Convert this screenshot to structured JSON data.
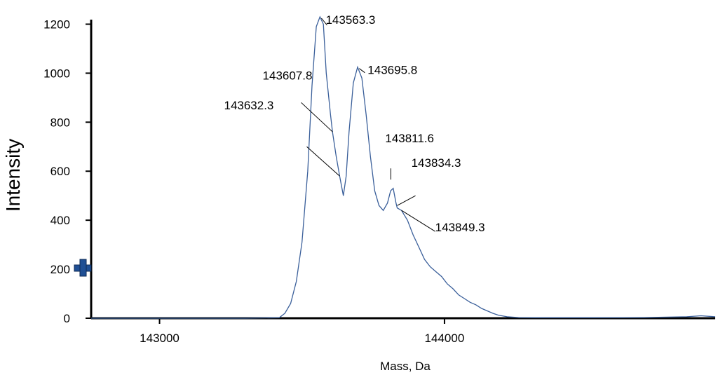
{
  "chart_data": {
    "type": "line",
    "title": "",
    "xlabel": "Mass, Da",
    "ylabel": "Intensity",
    "xlim": [
      142760,
      144950
    ],
    "ylim": [
      0,
      1230
    ],
    "x_ticks": [
      {
        "value": 143000,
        "label": "143000"
      },
      {
        "value": 144000,
        "label": "144000"
      }
    ],
    "y_ticks": [
      {
        "value": 0,
        "label": "0"
      },
      {
        "value": 200,
        "label": "200"
      },
      {
        "value": 400,
        "label": "400"
      },
      {
        "value": 600,
        "label": "600"
      },
      {
        "value": 800,
        "label": "800"
      },
      {
        "value": 1000,
        "label": "1000"
      },
      {
        "value": 1200,
        "label": "1200"
      }
    ],
    "grid": false,
    "legend": "none",
    "line_color": "#3a5f9a",
    "series": [
      {
        "points": [
          [
            142760,
            0
          ],
          [
            143300,
            0
          ],
          [
            143420,
            2
          ],
          [
            143440,
            20
          ],
          [
            143460,
            60
          ],
          [
            143480,
            150
          ],
          [
            143500,
            310
          ],
          [
            143520,
            600
          ],
          [
            143535,
            950
          ],
          [
            143550,
            1190
          ],
          [
            143563,
            1230
          ],
          [
            143575,
            1200
          ],
          [
            143585,
            1000
          ],
          [
            143600,
            830
          ],
          [
            143607,
            760
          ],
          [
            143620,
            660
          ],
          [
            143632,
            580
          ],
          [
            143645,
            500
          ],
          [
            143655,
            580
          ],
          [
            143665,
            760
          ],
          [
            143680,
            960
          ],
          [
            143695,
            1025
          ],
          [
            143710,
            980
          ],
          [
            143725,
            830
          ],
          [
            143740,
            660
          ],
          [
            143755,
            520
          ],
          [
            143770,
            460
          ],
          [
            143785,
            440
          ],
          [
            143800,
            470
          ],
          [
            143811,
            520
          ],
          [
            143820,
            530
          ],
          [
            143830,
            470
          ],
          [
            143834,
            450
          ],
          [
            143849,
            440
          ],
          [
            143870,
            400
          ],
          [
            143890,
            340
          ],
          [
            143910,
            290
          ],
          [
            143930,
            240
          ],
          [
            143950,
            210
          ],
          [
            143970,
            190
          ],
          [
            143990,
            170
          ],
          [
            144010,
            140
          ],
          [
            144030,
            120
          ],
          [
            144050,
            95
          ],
          [
            144070,
            80
          ],
          [
            144090,
            65
          ],
          [
            144110,
            55
          ],
          [
            144130,
            40
          ],
          [
            144150,
            30
          ],
          [
            144170,
            20
          ],
          [
            144190,
            12
          ],
          [
            144220,
            6
          ],
          [
            144260,
            3
          ],
          [
            144350,
            2
          ],
          [
            144500,
            2
          ],
          [
            144700,
            3
          ],
          [
            144850,
            6
          ],
          [
            144900,
            10
          ],
          [
            144950,
            6
          ]
        ]
      }
    ],
    "annotations": [
      {
        "label": "143563.3",
        "x": 143563.3,
        "y": 1230
      },
      {
        "label": "143607.8",
        "x": 143607.8,
        "y": 760
      },
      {
        "label": "143632.3",
        "x": 143632.3,
        "y": 580
      },
      {
        "label": "143695.8",
        "x": 143695.8,
        "y": 1025
      },
      {
        "label": "143811.6",
        "x": 143811.6,
        "y": 560
      },
      {
        "label": "143834.3",
        "x": 143834.3,
        "y": 460
      },
      {
        "label": "143849.3",
        "x": 143849.3,
        "y": 440
      }
    ],
    "marker_icon": "plus-marker-icon"
  }
}
